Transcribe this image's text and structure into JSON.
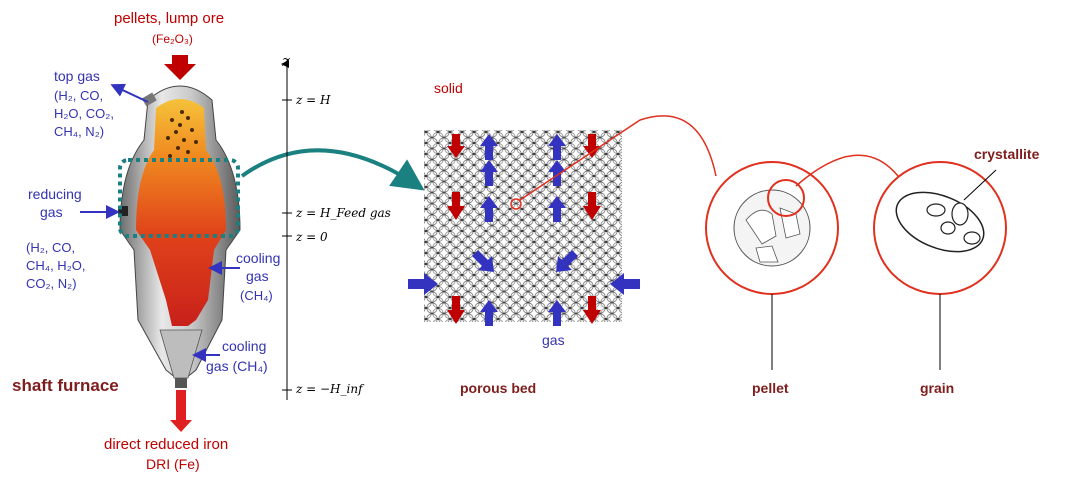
{
  "labels": {
    "feed_top": "pellets, lump ore",
    "feed_formula": "(Fe₂O₃)",
    "top_gas": "top gas",
    "top_gas_comp": [
      "(H₂, CO,",
      "H₂O, CO₂,",
      "CH₄, N₂)"
    ],
    "reducing_gas": [
      "reducing",
      "gas"
    ],
    "reducing_gas_comp": [
      "(H₂, CO,",
      "CH₄, H₂O,",
      "CO₂, N₂)"
    ],
    "cooling_gas_1": [
      "cooling",
      "gas",
      "(CH₄)"
    ],
    "cooling_gas_2": [
      "cooling",
      "gas (CH₄)"
    ],
    "shaft_furnace": "shaft furnace",
    "product_line1": "direct reduced iron",
    "product_line2": "DRI (Fe)",
    "axis_z": "z",
    "z_H": "z = H",
    "z_Hfeed": "z = H_Feed gas",
    "z_0": "z = 0",
    "z_Hinf": "z = −H_inf",
    "solid": "solid",
    "gas": "gas",
    "porous_bed": "porous bed",
    "crystallite": "crystallite",
    "pellet": "pellet",
    "grain": "grain"
  },
  "colors": {
    "red_text": "#c00000",
    "blue_text": "#3333b3",
    "maroon_label": "#7f1d1d",
    "teal_arrow": "#1a8080",
    "arrow_red": "#c00000",
    "arrow_blue": "#3333c0",
    "circle_red": "#e0301e"
  }
}
